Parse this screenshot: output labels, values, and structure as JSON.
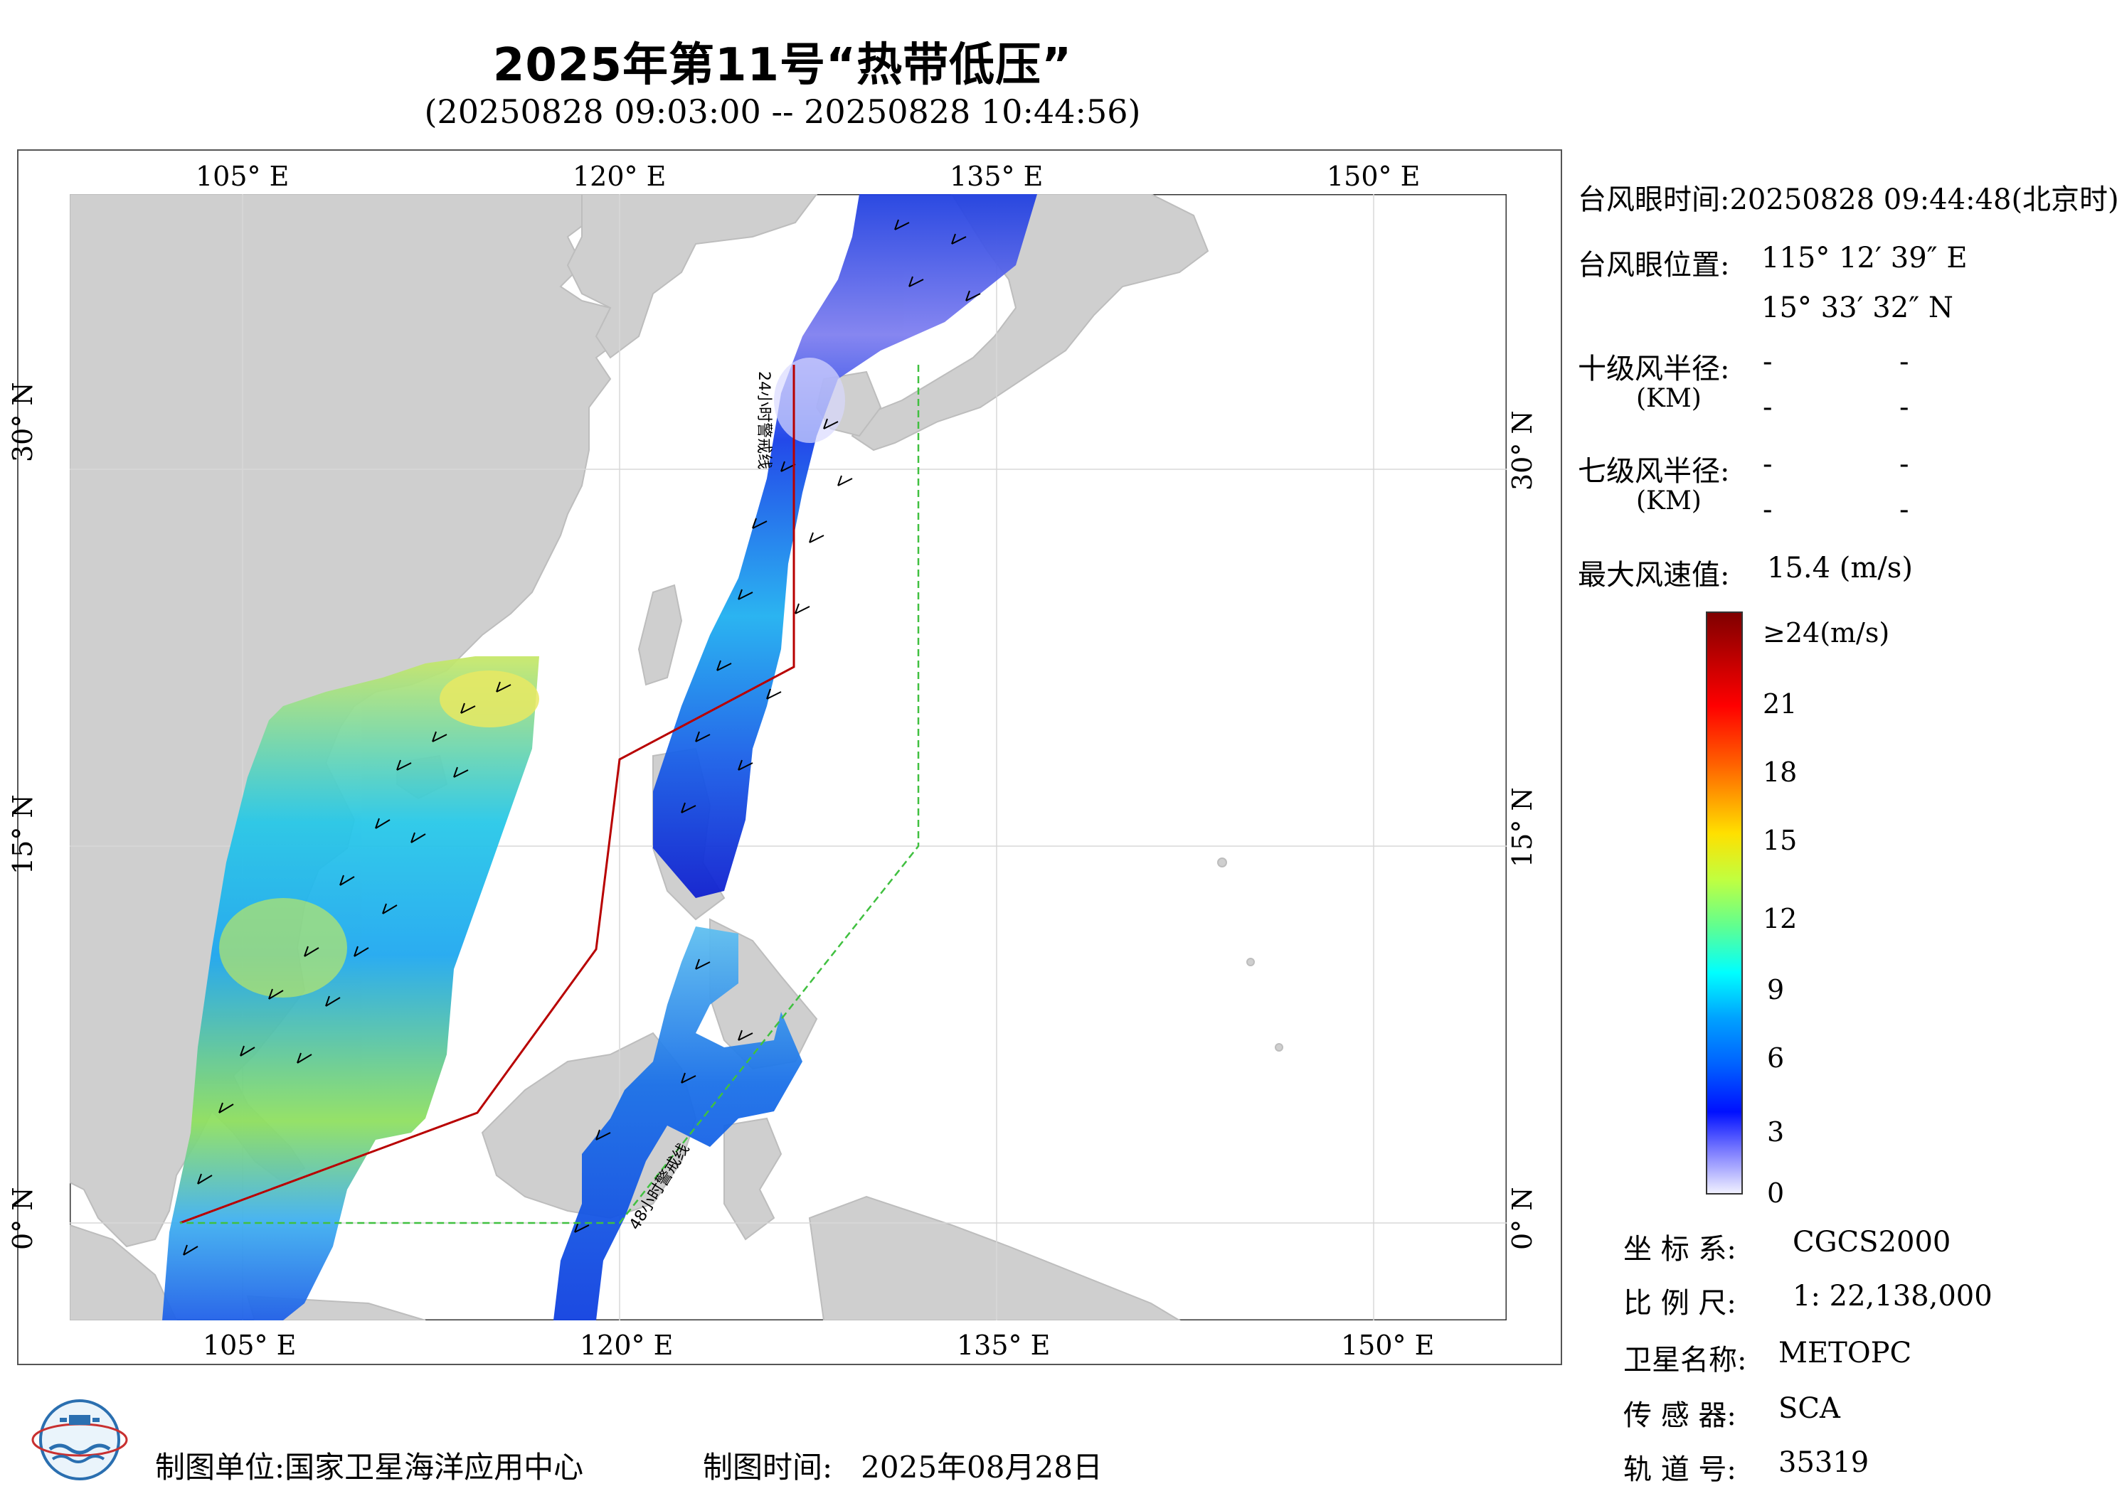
{
  "title": "2025年第11号“热带低压”",
  "subtitle": "(20250828 09:03:00 -- 20250828 10:44:56)",
  "map": {
    "lon_ticks": [
      "105° E",
      "120° E",
      "135° E",
      "150° E"
    ],
    "lat_ticks": [
      "30° N",
      "15° N",
      "0° N"
    ],
    "line_24h_label": "24小时警戒线",
    "line_48h_label": "48小时警戒线"
  },
  "info": {
    "eye_time_label": "台风眼时间:",
    "eye_time_value": "20250828 09:44:48(北京时)",
    "eye_pos_label": "台风眼位置:",
    "eye_lon": "115° 12′ 39″ E",
    "eye_lat": "15° 33′ 32″ N",
    "r10_label": "十级风半径:",
    "r7_label": "七级风半径:",
    "km_label": "(KM)",
    "dash": "-",
    "max_wind_label": "最大风速值:",
    "max_wind_value": "15.4  (m/s)"
  },
  "colorbar": {
    "labels": [
      "≥24(m/s)",
      "21",
      "18",
      "15",
      "12",
      "9",
      "6",
      "3",
      "0"
    ],
    "colors": [
      "#7f0000",
      "#ff0000",
      "#ff8000",
      "#ffff00",
      "#80ff80",
      "#00ffff",
      "#0080ff",
      "#0000ff",
      "#e8e8ff"
    ]
  },
  "meta": {
    "crs_label": "坐 标 系:",
    "crs_value": "CGCS2000",
    "scale_label": "比 例 尺:",
    "scale_value": "1: 22,138,000",
    "sat_label": "卫星名称:",
    "sat_value": "METOPC",
    "sensor_label": "传 感 器:",
    "sensor_value": "SCA",
    "orbit_label": "轨 道 号:",
    "orbit_value": "35319"
  },
  "footer": {
    "org_label": "制图单位:",
    "org_value": "国家卫星海洋应用中心",
    "time_label": "制图时间:",
    "time_value": "2025年08月28日"
  }
}
